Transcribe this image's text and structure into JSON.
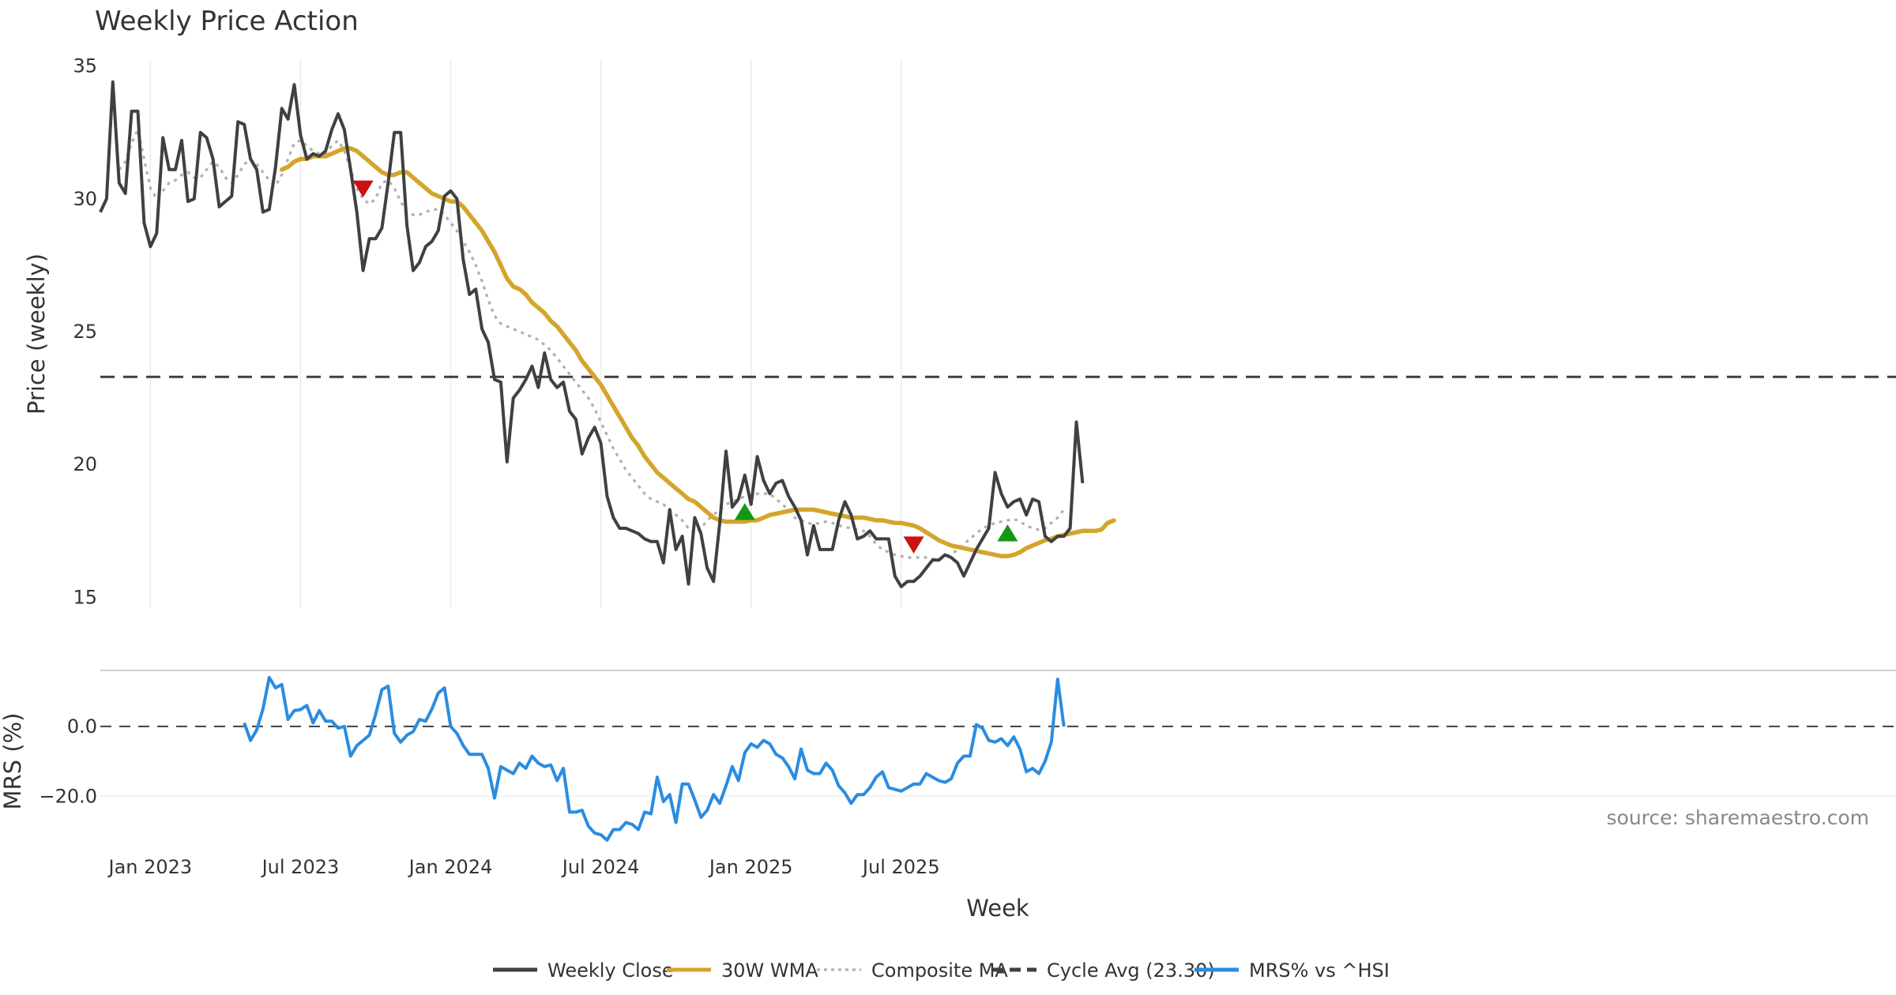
{
  "chart_data": [
    {
      "type": "line",
      "title": "Weekly Price Action",
      "xlabel": "",
      "ylabel": "Price (weekly)",
      "ylim": [
        14.3,
        35.7
      ],
      "yticks": [
        15,
        20,
        25,
        30,
        35
      ],
      "grid": "x",
      "series": [
        {
          "name": "Weekly Close",
          "color": "#404040",
          "values": [
            29.5,
            30.0,
            34.4,
            30.6,
            30.2,
            33.3,
            33.3,
            29.1,
            28.2,
            28.7,
            32.3,
            31.1,
            31.1,
            32.2,
            29.9,
            30.0,
            32.5,
            32.3,
            31.5,
            29.7,
            29.9,
            30.1,
            32.9,
            32.8,
            31.5,
            31.1,
            29.5,
            29.6,
            31.2,
            33.4,
            33.0,
            34.3,
            32.4,
            31.5,
            31.7,
            31.6,
            31.8,
            32.6,
            33.2,
            32.6,
            31.1,
            29.5,
            27.3,
            28.5,
            28.5,
            28.9,
            30.6,
            32.5,
            32.5,
            29.0,
            27.3,
            27.6,
            28.2,
            28.4,
            28.8,
            30.1,
            30.3,
            30.0,
            27.7,
            26.4,
            26.6,
            25.1,
            24.6,
            23.2,
            23.1,
            20.1,
            22.5,
            22.8,
            23.2,
            23.7,
            22.9,
            24.2,
            23.2,
            22.9,
            23.1,
            22.0,
            21.7,
            20.4,
            21.0,
            21.4,
            20.8,
            18.8,
            18.0,
            17.6,
            17.6,
            17.5,
            17.4,
            17.2,
            17.1,
            17.1,
            16.3,
            18.3,
            16.8,
            17.3,
            15.5,
            18.0,
            17.4,
            16.1,
            15.6,
            17.8,
            20.5,
            18.4,
            18.7,
            19.6,
            18.5,
            20.3,
            19.4,
            18.9,
            19.3,
            19.4,
            18.8,
            18.4,
            17.9,
            16.6,
            17.7,
            16.8,
            16.8,
            16.8,
            17.9,
            18.6,
            18.1,
            17.2,
            17.3,
            17.5,
            17.2,
            17.2,
            17.2,
            15.8,
            15.4,
            15.6,
            15.6,
            15.8,
            16.1,
            16.4,
            16.4,
            16.6,
            16.5,
            16.3,
            15.8,
            16.3,
            16.8,
            17.2,
            17.6,
            19.7,
            18.9,
            18.4,
            18.6,
            18.7,
            18.1,
            18.7,
            18.6,
            17.3,
            17.1,
            17.3,
            17.3,
            17.6,
            21.6,
            19.3
          ]
        },
        {
          "name": "30W WMA",
          "color": "#d4a52b",
          "start_index": 29,
          "values": [
            31.1,
            31.2,
            31.4,
            31.5,
            31.5,
            31.6,
            31.6,
            31.6,
            31.7,
            31.8,
            31.9,
            31.9,
            31.8,
            31.6,
            31.4,
            31.2,
            31.0,
            30.9,
            30.9,
            31.0,
            31.0,
            30.8,
            30.6,
            30.4,
            30.2,
            30.1,
            30.0,
            29.9,
            29.9,
            29.7,
            29.4,
            29.1,
            28.8,
            28.4,
            28.0,
            27.5,
            27.0,
            26.7,
            26.6,
            26.4,
            26.1,
            25.9,
            25.7,
            25.4,
            25.2,
            24.9,
            24.6,
            24.3,
            23.9,
            23.6,
            23.3,
            23.0,
            22.6,
            22.2,
            21.8,
            21.4,
            21.0,
            20.7,
            20.3,
            20.0,
            19.7,
            19.5,
            19.3,
            19.1,
            18.9,
            18.7,
            18.6,
            18.4,
            18.2,
            18.0,
            17.9,
            17.85,
            17.85,
            17.85,
            17.85,
            17.9,
            17.9,
            18.0,
            18.1,
            18.15,
            18.2,
            18.25,
            18.3,
            18.3,
            18.3,
            18.3,
            18.25,
            18.2,
            18.15,
            18.1,
            18.05,
            18.0,
            18.0,
            18.0,
            17.95,
            17.9,
            17.9,
            17.85,
            17.8,
            17.8,
            17.75,
            17.7,
            17.6,
            17.45,
            17.3,
            17.15,
            17.05,
            16.95,
            16.9,
            16.85,
            16.8,
            16.75,
            16.7,
            16.65,
            16.6,
            16.55,
            16.55,
            16.6,
            16.7,
            16.85,
            16.95,
            17.05,
            17.15,
            17.2,
            17.3,
            17.35,
            17.4,
            17.45,
            17.5,
            17.5,
            17.5,
            17.55,
            17.8,
            17.9
          ]
        },
        {
          "name": "Composite MA",
          "color": "#b0b0b0",
          "start_index": 3,
          "values": [
            31.1,
            31.4,
            32.1,
            32.6,
            31.5,
            30.4,
            30.0,
            30.3,
            30.6,
            30.7,
            30.9,
            31.0,
            30.8,
            30.8,
            31.1,
            31.4,
            31.2,
            30.8,
            30.6,
            30.9,
            31.3,
            31.5,
            31.3,
            31.0,
            30.7,
            30.5,
            30.9,
            31.5,
            32.1,
            32.2,
            32.0,
            31.8,
            31.7,
            31.7,
            32.0,
            32.2,
            31.8,
            31.1,
            30.4,
            30.0,
            29.8,
            30.0,
            30.6,
            30.7,
            30.4,
            29.9,
            29.5,
            29.4,
            29.4,
            29.5,
            29.6,
            29.6,
            29.4,
            29.1,
            28.8,
            28.4,
            28.0,
            27.5,
            26.9,
            26.2,
            25.6,
            25.3,
            25.2,
            25.1,
            25.0,
            24.9,
            24.8,
            24.7,
            24.5,
            24.3,
            24.0,
            23.7,
            23.4,
            23.1,
            22.8,
            22.5,
            22.1,
            21.6,
            21.1,
            20.6,
            20.2,
            19.8,
            19.5,
            19.2,
            18.9,
            18.7,
            18.6,
            18.5,
            18.3,
            18.1,
            17.9,
            17.6,
            17.4,
            17.6,
            17.9,
            18.1,
            18.3,
            18.5,
            18.6,
            18.7,
            18.8,
            18.8,
            18.9,
            18.9,
            18.9,
            18.7,
            18.5,
            18.3,
            18.0,
            17.9,
            17.8,
            17.75,
            17.8,
            17.85,
            17.8,
            17.7,
            17.65,
            17.6,
            17.55,
            17.5,
            17.3,
            17.0,
            16.8,
            16.7,
            16.6,
            16.55,
            16.5,
            16.5,
            16.5,
            16.5,
            16.45,
            16.45,
            16.5,
            16.6,
            16.8,
            17.0,
            17.2,
            17.4,
            17.6,
            17.7,
            17.8,
            17.85,
            17.9,
            17.95,
            17.85,
            17.7,
            17.6,
            17.55,
            17.6,
            17.8,
            18.0,
            18.3
          ]
        },
        {
          "name": "Cycle Avg (23.30)",
          "color": "#404040",
          "constant": 23.3
        }
      ],
      "markers": [
        {
          "type": "sell",
          "symbol": "down-triangle",
          "color": "#cc1111",
          "index": 42,
          "value": 30.4
        },
        {
          "type": "buy",
          "symbol": "up-triangle",
          "color": "#119911",
          "index": 103,
          "value": 18.2
        },
        {
          "type": "sell",
          "symbol": "down-triangle",
          "color": "#cc1111",
          "index": 130,
          "value": 17.0
        },
        {
          "type": "buy",
          "symbol": "up-triangle",
          "color": "#119911",
          "index": 145,
          "value": 17.4
        }
      ]
    },
    {
      "type": "line",
      "title": "",
      "xlabel": "Week",
      "ylabel": "MRS (%)",
      "ylim": [
        -33,
        16
      ],
      "yticks": [
        0.0,
        -20.0
      ],
      "ytick_labels": [
        "0.0",
        "−20.0"
      ],
      "x_ticks": [
        "Jan 2023",
        "Jul 2023",
        "Jan 2024",
        "Jul 2024",
        "Jan 2025",
        "Jul 2025"
      ],
      "x_tick_index": [
        8,
        32,
        56,
        80,
        104,
        128
      ],
      "zero_line": 0,
      "series": [
        {
          "name": "MRS% vs ^HSI",
          "color": "#2b8ce0",
          "start_index": 23,
          "values": [
            1.0,
            -4.0,
            -1.0,
            5.0,
            14.0,
            11.0,
            12.0,
            2.0,
            4.5,
            4.8,
            6.0,
            1.0,
            4.5,
            1.5,
            1.5,
            -0.5,
            0.0,
            -8.5,
            -5.5,
            -4.0,
            -2.5,
            3.5,
            10.5,
            11.5,
            -2.0,
            -4.5,
            -2.5,
            -1.5,
            2.0,
            1.5,
            5.0,
            9.5,
            11.0,
            0.0,
            -2.0,
            -5.5,
            -8.0,
            -8.0,
            -8.0,
            -12.0,
            -20.5,
            -11.5,
            -12.5,
            -13.5,
            -10.5,
            -12.0,
            -8.5,
            -10.5,
            -11.5,
            -11.0,
            -15.5,
            -12.0,
            -24.5,
            -24.5,
            -24.0,
            -28.5,
            -30.5,
            -31.0,
            -32.5,
            -29.5,
            -29.5,
            -27.5,
            -28.0,
            -29.5,
            -24.5,
            -25.0,
            -14.5,
            -21.5,
            -19.5,
            -27.5,
            -16.5,
            -16.5,
            -21.0,
            -26.0,
            -24.0,
            -19.5,
            -22.0,
            -17.0,
            -11.5,
            -15.5,
            -7.5,
            -5.0,
            -6.0,
            -4.0,
            -5.0,
            -8.0,
            -9.0,
            -11.5,
            -15.0,
            -6.5,
            -12.5,
            -13.5,
            -13.5,
            -10.5,
            -12.5,
            -17.0,
            -19.0,
            -22.0,
            -19.5,
            -19.5,
            -17.5,
            -14.5,
            -13.0,
            -17.5,
            -18.0,
            -18.5,
            -17.5,
            -16.5,
            -16.5,
            -13.5,
            -14.5,
            -15.5,
            -16.0,
            -15.0,
            -10.5,
            -8.5,
            -8.5,
            0.5,
            -0.5,
            -4.0,
            -4.5,
            -3.5,
            -5.5,
            -3.0,
            -6.5,
            -13.0,
            -12.0,
            -13.5,
            -10.0,
            -4.5,
            13.5,
            0.0
          ]
        }
      ]
    }
  ],
  "source": "source: sharemaestro.com",
  "legend": {
    "position": "bottom-center",
    "items": [
      {
        "label": "Weekly Close",
        "style": "solid",
        "color": "#404040"
      },
      {
        "label": "30W WMA",
        "style": "solid",
        "color": "#d4a52b"
      },
      {
        "label": "Composite MA",
        "style": "dotted",
        "color": "#b0b0b0"
      },
      {
        "label": "Cycle Avg (23.30)",
        "style": "dashed",
        "color": "#404040"
      },
      {
        "label": "MRS% vs ^HSI",
        "style": "solid",
        "color": "#2b8ce0"
      }
    ]
  }
}
